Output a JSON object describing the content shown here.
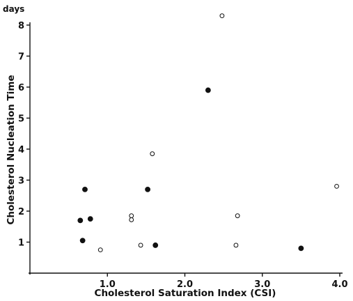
{
  "chart_data": {
    "type": "scatter",
    "title": "",
    "xlabel": "Cholesterol Saturation Index (CSI)",
    "ylabel": "Cholesterol Nucleation Time",
    "y_unit": "days",
    "xlim": [
      0,
      4.0
    ],
    "ylim": [
      0,
      8
    ],
    "grid": false,
    "x_ticks": [
      1.0,
      2.0,
      3.0,
      4.0
    ],
    "x_tick_labels": [
      "1.0",
      "2.0",
      "3.0",
      "4.0"
    ],
    "y_ticks": [
      1,
      2,
      3,
      4,
      5,
      6,
      7,
      8
    ],
    "y_tick_labels": [
      "1",
      "2",
      "3",
      "4",
      "5",
      "6",
      "7",
      "8"
    ],
    "series": [
      {
        "marker": "filled-circle",
        "points": [
          {
            "x": 0.65,
            "y": 1.7
          },
          {
            "x": 0.68,
            "y": 1.05
          },
          {
            "x": 0.71,
            "y": 2.7
          },
          {
            "x": 0.78,
            "y": 1.75
          },
          {
            "x": 1.52,
            "y": 2.7
          },
          {
            "x": 1.62,
            "y": 0.9
          },
          {
            "x": 2.3,
            "y": 5.9
          },
          {
            "x": 3.5,
            "y": 0.8
          }
        ]
      },
      {
        "marker": "open-circle",
        "points": [
          {
            "x": 0.91,
            "y": 0.75
          },
          {
            "x": 1.31,
            "y": 1.85
          },
          {
            "x": 1.31,
            "y": 1.72
          },
          {
            "x": 1.43,
            "y": 0.9
          },
          {
            "x": 1.58,
            "y": 3.85
          },
          {
            "x": 2.48,
            "y": 8.3
          },
          {
            "x": 2.66,
            "y": 0.9
          },
          {
            "x": 2.68,
            "y": 1.85
          },
          {
            "x": 3.96,
            "y": 2.8
          }
        ]
      }
    ],
    "colors": {
      "ink": "#111111",
      "background": "#ffffff"
    }
  }
}
